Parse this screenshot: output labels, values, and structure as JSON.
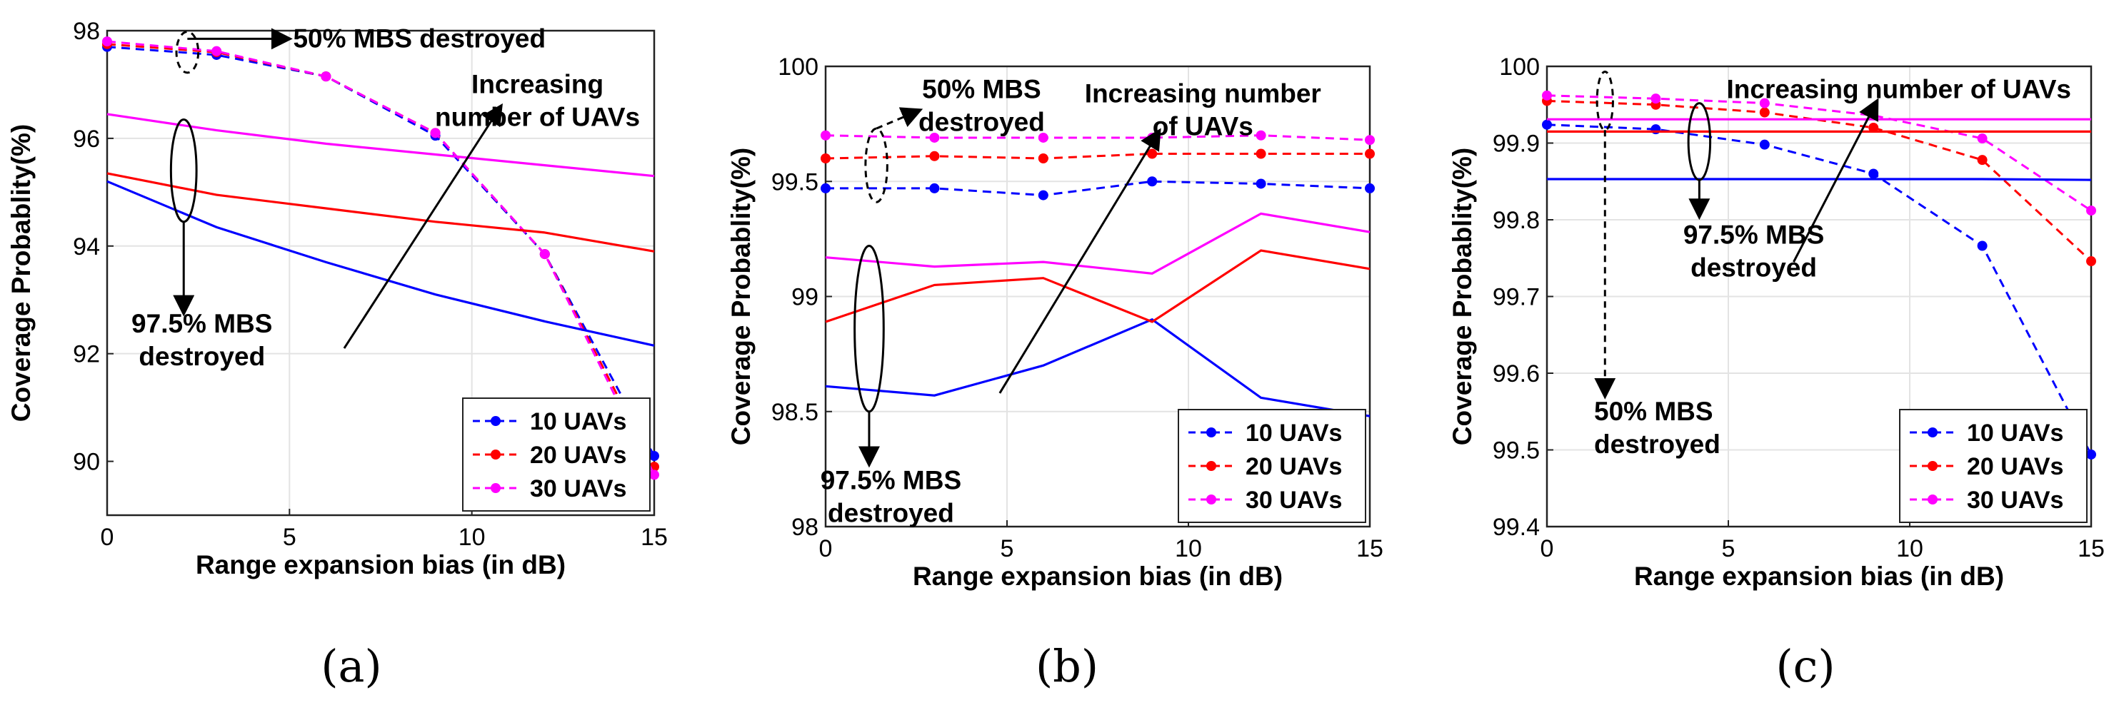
{
  "chart_data": [
    {
      "type": "line",
      "subfigure_label": "(a)",
      "xlabel": "Range expansion bias (in dB)",
      "ylabel": "Coverage Probablity(%)",
      "xlim": [
        0,
        15
      ],
      "ylim": [
        89,
        98
      ],
      "xticks": [
        0,
        5,
        10,
        15
      ],
      "yticks": [
        90,
        92,
        94,
        96,
        98
      ],
      "xtick_labels": [
        "0",
        "5",
        "10",
        "15"
      ],
      "ytick_labels": [
        "90",
        "92",
        "94",
        "96",
        "98"
      ],
      "grid": true,
      "legend_position": "bottom-right",
      "legend": [
        "10 UAVs",
        "20 UAVs",
        "30 UAVs"
      ],
      "colors": {
        "10 UAVs": "#0000ff",
        "20 UAVs": "#ff0000",
        "30 UAVs": "#ff00ff"
      },
      "series": [
        {
          "name": "10 UAVs",
          "scenario": "50% MBS destroyed",
          "style": "dashed-marker",
          "x": [
            0,
            3,
            6,
            9,
            12,
            15
          ],
          "y": [
            97.7,
            97.55,
            97.15,
            96.05,
            93.85,
            90.1
          ]
        },
        {
          "name": "20 UAVs",
          "scenario": "50% MBS destroyed",
          "style": "dashed-marker",
          "x": [
            0,
            3,
            6,
            9,
            12,
            15
          ],
          "y": [
            97.75,
            97.6,
            97.15,
            96.1,
            93.85,
            89.9
          ]
        },
        {
          "name": "30 UAVs",
          "scenario": "50% MBS destroyed",
          "style": "dashed-marker",
          "x": [
            0,
            3,
            6,
            9,
            12,
            15
          ],
          "y": [
            97.8,
            97.62,
            97.15,
            96.1,
            93.85,
            89.75
          ]
        },
        {
          "name": "10 UAVs",
          "scenario": "97.5% MBS destroyed",
          "style": "solid",
          "x": [
            0,
            3,
            6,
            9,
            12,
            15
          ],
          "y": [
            95.2,
            94.35,
            93.7,
            93.1,
            92.6,
            92.15
          ]
        },
        {
          "name": "20 UAVs",
          "scenario": "97.5% MBS destroyed",
          "style": "solid",
          "x": [
            0,
            3,
            6,
            9,
            12,
            15
          ],
          "y": [
            95.35,
            94.95,
            94.7,
            94.45,
            94.25,
            93.9
          ]
        },
        {
          "name": "30 UAVs",
          "scenario": "97.5% MBS destroyed",
          "style": "solid",
          "x": [
            0,
            3,
            6,
            9,
            12,
            15
          ],
          "y": [
            96.45,
            96.15,
            95.9,
            95.7,
            95.5,
            95.3
          ]
        }
      ],
      "annotations": [
        {
          "text_lines": [
            "50% MBS destroyed"
          ],
          "ellipse": {
            "cx": 2.2,
            "cy": 97.6,
            "rx": 0.3,
            "ry": 0.38,
            "dashed": true
          },
          "arrow": {
            "from": [
              2.2,
              97.85
            ],
            "to": [
              5.0,
              97.85
            ],
            "dashed": false
          },
          "text_at": [
            5.1,
            97.85
          ],
          "anchor": "start"
        },
        {
          "text_lines": [
            "97.5% MBS",
            "destroyed"
          ],
          "ellipse": {
            "cx": 2.1,
            "cy": 95.4,
            "rx": 0.35,
            "ry": 0.95,
            "dashed": false
          },
          "arrow": {
            "from": [
              2.1,
              94.45
            ],
            "to": [
              2.1,
              92.75
            ],
            "dashed": false
          },
          "text_at": [
            2.6,
            92.55
          ],
          "anchor": "middle"
        },
        {
          "text_lines": [
            "Increasing",
            "number of UAVs"
          ],
          "arrow": {
            "from": [
              6.5,
              92.1
            ],
            "to": [
              10.8,
              96.6
            ],
            "dashed": false
          },
          "text_at": [
            11.8,
            97.0
          ],
          "anchor": "middle"
        }
      ]
    },
    {
      "type": "line",
      "subfigure_label": "(b)",
      "xlabel": "Range expansion bias (in dB)",
      "ylabel": "Coverage Probablity(%)",
      "xlim": [
        0,
        15
      ],
      "ylim": [
        98,
        100
      ],
      "xticks": [
        0,
        5,
        10,
        15
      ],
      "yticks": [
        98,
        98.5,
        99,
        99.5,
        100
      ],
      "xtick_labels": [
        "0",
        "5",
        "10",
        "15"
      ],
      "ytick_labels": [
        "98",
        "98.5",
        "99",
        "99.5",
        "100"
      ],
      "grid": true,
      "legend_position": "bottom-right",
      "legend": [
        "10 UAVs",
        "20 UAVs",
        "30 UAVs"
      ],
      "colors": {
        "10 UAVs": "#0000ff",
        "20 UAVs": "#ff0000",
        "30 UAVs": "#ff00ff"
      },
      "series": [
        {
          "name": "10 UAVs",
          "scenario": "50% MBS destroyed",
          "style": "dashed-marker",
          "x": [
            0,
            3,
            6,
            9,
            12,
            15
          ],
          "y": [
            99.47,
            99.47,
            99.44,
            99.5,
            99.49,
            99.47
          ]
        },
        {
          "name": "20 UAVs",
          "scenario": "50% MBS destroyed",
          "style": "dashed-marker",
          "x": [
            0,
            3,
            6,
            9,
            12,
            15
          ],
          "y": [
            99.6,
            99.61,
            99.6,
            99.62,
            99.62,
            99.62
          ]
        },
        {
          "name": "30 UAVs",
          "scenario": "50% MBS destroyed",
          "style": "dashed-marker",
          "x": [
            0,
            3,
            6,
            9,
            12,
            15
          ],
          "y": [
            99.7,
            99.69,
            99.69,
            99.69,
            99.7,
            99.68
          ]
        },
        {
          "name": "10 UAVs",
          "scenario": "97.5% MBS destroyed",
          "style": "solid",
          "x": [
            0,
            3,
            6,
            9,
            12,
            15
          ],
          "y": [
            98.61,
            98.57,
            98.7,
            98.9,
            98.56,
            98.48
          ]
        },
        {
          "name": "20 UAVs",
          "scenario": "97.5% MBS destroyed",
          "style": "solid",
          "x": [
            0,
            3,
            6,
            9,
            12,
            15
          ],
          "y": [
            98.89,
            99.05,
            99.08,
            98.89,
            99.2,
            99.12
          ]
        },
        {
          "name": "30 UAVs",
          "scenario": "97.5% MBS destroyed",
          "style": "solid",
          "x": [
            0,
            3,
            6,
            9,
            12,
            15
          ],
          "y": [
            99.17,
            99.13,
            99.15,
            99.1,
            99.36,
            99.28
          ]
        }
      ],
      "annotations": [
        {
          "text_lines": [
            "50% MBS",
            "destroyed"
          ],
          "ellipse": {
            "cx": 1.4,
            "cy": 99.57,
            "rx": 0.3,
            "ry": 0.16,
            "dashed": true
          },
          "arrow": {
            "from": [
              1.4,
              99.73
            ],
            "to": [
              2.6,
              99.81
            ],
            "dashed": true
          },
          "text_at": [
            4.3,
            99.9
          ],
          "anchor": "middle"
        },
        {
          "text_lines": [
            "97.5% MBS",
            "destroyed"
          ],
          "ellipse": {
            "cx": 1.2,
            "cy": 98.86,
            "rx": 0.4,
            "ry": 0.36,
            "dashed": false
          },
          "arrow": {
            "from": [
              1.2,
              98.5
            ],
            "to": [
              1.2,
              98.27
            ],
            "dashed": false
          },
          "text_at": [
            1.8,
            98.2
          ],
          "anchor": "middle"
        },
        {
          "text_lines": [
            "Increasing number",
            "of UAVs"
          ],
          "arrow": {
            "from": [
              4.8,
              98.58
            ],
            "to": [
              9.2,
              99.72
            ],
            "dashed": false
          },
          "text_at": [
            10.4,
            99.88
          ],
          "anchor": "middle"
        }
      ]
    },
    {
      "type": "line",
      "subfigure_label": "(c)",
      "xlabel": "Range expansion bias (in dB)",
      "ylabel": "Coverage Probablity(%)",
      "xlim": [
        0,
        15
      ],
      "ylim": [
        99.4,
        100
      ],
      "xticks": [
        0,
        5,
        10,
        15
      ],
      "yticks": [
        99.4,
        99.5,
        99.6,
        99.7,
        99.8,
        99.9,
        100
      ],
      "xtick_labels": [
        "0",
        "5",
        "10",
        "15"
      ],
      "ytick_labels": [
        "99.4",
        "99.5",
        "99.6",
        "99.7",
        "99.8",
        "99.9",
        "100"
      ],
      "grid": true,
      "legend_position": "bottom-right",
      "legend": [
        "10 UAVs",
        "20 UAVs",
        "30 UAVs"
      ],
      "colors": {
        "10 UAVs": "#0000ff",
        "20 UAVs": "#ff0000",
        "30 UAVs": "#ff00ff"
      },
      "series": [
        {
          "name": "10 UAVs",
          "scenario": "50% MBS destroyed",
          "style": "dashed-marker",
          "x": [
            0,
            3,
            6,
            9,
            12,
            15
          ],
          "y": [
            99.924,
            99.918,
            99.898,
            99.86,
            99.766,
            99.494
          ]
        },
        {
          "name": "20 UAVs",
          "scenario": "50% MBS destroyed",
          "style": "dashed-marker",
          "x": [
            0,
            3,
            6,
            9,
            12,
            15
          ],
          "y": [
            99.955,
            99.95,
            99.94,
            99.92,
            99.878,
            99.746
          ]
        },
        {
          "name": "30 UAVs",
          "scenario": "50% MBS destroyed",
          "style": "dashed-marker",
          "x": [
            0,
            3,
            6,
            9,
            12,
            15
          ],
          "y": [
            99.962,
            99.958,
            99.952,
            99.936,
            99.906,
            99.812
          ]
        },
        {
          "name": "10 UAVs",
          "scenario": "97.5% MBS destroyed",
          "style": "solid",
          "x": [
            0,
            3,
            6,
            9,
            12,
            15
          ],
          "y": [
            99.853,
            99.853,
            99.853,
            99.853,
            99.853,
            99.852
          ]
        },
        {
          "name": "20 UAVs",
          "scenario": "97.5% MBS destroyed",
          "style": "solid",
          "x": [
            0,
            3,
            6,
            9,
            12,
            15
          ],
          "y": [
            99.915,
            99.915,
            99.915,
            99.915,
            99.915,
            99.915
          ]
        },
        {
          "name": "30 UAVs",
          "scenario": "97.5% MBS destroyed",
          "style": "solid",
          "x": [
            0,
            3,
            6,
            9,
            12,
            15
          ],
          "y": [
            99.931,
            99.931,
            99.931,
            99.931,
            99.931,
            99.931
          ]
        }
      ],
      "annotations": [
        {
          "text_lines": [
            "50% MBS",
            "destroyed"
          ],
          "ellipse": {
            "cx": 1.6,
            "cy": 99.955,
            "rx": 0.22,
            "ry": 0.038,
            "dashed": true
          },
          "arrow": {
            "from": [
              1.6,
              99.917
            ],
            "to": [
              1.6,
              99.57
            ],
            "dashed": true
          },
          "text_at": [
            1.3,
            99.55
          ],
          "anchor": "start"
        },
        {
          "text_lines": [
            "97.5% MBS",
            "destroyed"
          ],
          "ellipse": {
            "cx": 4.2,
            "cy": 99.902,
            "rx": 0.3,
            "ry": 0.05,
            "dashed": false
          },
          "arrow": {
            "from": [
              4.2,
              99.852
            ],
            "to": [
              4.2,
              99.804
            ],
            "dashed": false
          },
          "text_at": [
            5.7,
            99.78
          ],
          "anchor": "middle"
        },
        {
          "text_lines": [
            "Increasing number of UAVs"
          ],
          "arrow": {
            "from": [
              6.8,
              99.745
            ],
            "to": [
              9.1,
              99.955
            ],
            "dashed": false
          },
          "text_at": [
            9.7,
            99.97
          ],
          "anchor": "middle"
        }
      ]
    }
  ]
}
